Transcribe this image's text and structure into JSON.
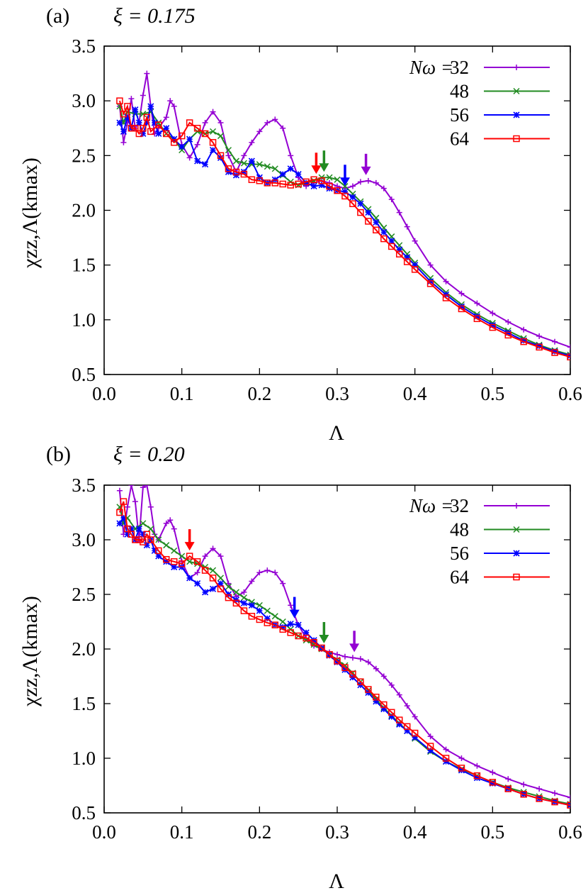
{
  "chart_data": [
    {
      "type": "line",
      "panel_label": "(a)",
      "param_label": "ξ = 0.175",
      "xlabel": "Λ",
      "ylabel": "χzz,Λ(kmax)",
      "xlim": [
        0.0,
        0.6
      ],
      "ylim": [
        0.5,
        3.5
      ],
      "xticks": [
        "0.0",
        "0.1",
        "0.2",
        "0.3",
        "0.4",
        "0.5",
        "0.6"
      ],
      "yticks": [
        "0.5",
        "1.0",
        "1.5",
        "2.0",
        "2.5",
        "3.0",
        "3.5"
      ],
      "legend_title": "Nω =",
      "legend_position": "top-right",
      "series": [
        {
          "name": "32",
          "color": "#9400d3",
          "marker": "plus",
          "x": [
            0.02,
            0.025,
            0.03,
            0.035,
            0.04,
            0.045,
            0.05,
            0.055,
            0.06,
            0.065,
            0.07,
            0.08,
            0.085,
            0.09,
            0.1,
            0.11,
            0.12,
            0.13,
            0.14,
            0.15,
            0.16,
            0.17,
            0.18,
            0.19,
            0.2,
            0.21,
            0.22,
            0.23,
            0.24,
            0.25,
            0.26,
            0.27,
            0.28,
            0.29,
            0.3,
            0.31,
            0.32,
            0.33,
            0.34,
            0.35,
            0.36,
            0.37,
            0.38,
            0.39,
            0.4,
            0.42,
            0.44,
            0.46,
            0.48,
            0.5,
            0.52,
            0.54,
            0.56,
            0.58,
            0.6
          ],
          "y": [
            2.95,
            2.62,
            2.8,
            3.02,
            2.75,
            2.8,
            3.05,
            3.25,
            2.95,
            2.7,
            2.75,
            2.85,
            3.0,
            2.95,
            2.6,
            2.48,
            2.6,
            2.8,
            2.9,
            2.8,
            2.5,
            2.35,
            2.5,
            2.62,
            2.72,
            2.8,
            2.83,
            2.75,
            2.5,
            2.3,
            2.22,
            2.25,
            2.27,
            2.25,
            2.22,
            2.2,
            2.22,
            2.26,
            2.27,
            2.25,
            2.2,
            2.1,
            1.98,
            1.85,
            1.72,
            1.5,
            1.35,
            1.24,
            1.15,
            1.06,
            0.98,
            0.91,
            0.85,
            0.8,
            0.75
          ]
        },
        {
          "name": "48",
          "color": "#228b22",
          "marker": "cross",
          "x": [
            0.02,
            0.025,
            0.03,
            0.04,
            0.05,
            0.06,
            0.07,
            0.08,
            0.09,
            0.1,
            0.11,
            0.12,
            0.13,
            0.14,
            0.15,
            0.16,
            0.17,
            0.18,
            0.19,
            0.2,
            0.21,
            0.22,
            0.23,
            0.24,
            0.25,
            0.26,
            0.27,
            0.28,
            0.29,
            0.3,
            0.31,
            0.32,
            0.33,
            0.34,
            0.35,
            0.36,
            0.37,
            0.38,
            0.39,
            0.4,
            0.42,
            0.44,
            0.46,
            0.48,
            0.5,
            0.52,
            0.54,
            0.56,
            0.58,
            0.6
          ],
          "y": [
            2.95,
            2.8,
            2.9,
            2.88,
            2.88,
            2.9,
            2.8,
            2.7,
            2.65,
            2.55,
            2.65,
            2.72,
            2.7,
            2.72,
            2.68,
            2.55,
            2.45,
            2.43,
            2.42,
            2.42,
            2.4,
            2.38,
            2.32,
            2.26,
            2.23,
            2.25,
            2.27,
            2.3,
            2.3,
            2.28,
            2.22,
            2.15,
            2.08,
            2.01,
            1.93,
            1.84,
            1.76,
            1.68,
            1.6,
            1.52,
            1.38,
            1.25,
            1.14,
            1.05,
            0.97,
            0.9,
            0.83,
            0.77,
            0.72,
            0.68
          ]
        },
        {
          "name": "56",
          "color": "#0000ff",
          "marker": "star",
          "x": [
            0.02,
            0.025,
            0.03,
            0.035,
            0.04,
            0.045,
            0.05,
            0.055,
            0.06,
            0.065,
            0.07,
            0.08,
            0.09,
            0.1,
            0.11,
            0.12,
            0.13,
            0.14,
            0.15,
            0.16,
            0.17,
            0.18,
            0.19,
            0.2,
            0.21,
            0.22,
            0.23,
            0.24,
            0.25,
            0.26,
            0.27,
            0.28,
            0.29,
            0.3,
            0.31,
            0.32,
            0.33,
            0.34,
            0.35,
            0.36,
            0.37,
            0.38,
            0.39,
            0.4,
            0.42,
            0.44,
            0.46,
            0.48,
            0.5,
            0.52,
            0.54,
            0.56,
            0.58,
            0.6
          ],
          "y": [
            2.8,
            2.72,
            2.85,
            2.75,
            2.92,
            2.8,
            2.7,
            2.8,
            2.95,
            2.8,
            2.7,
            2.75,
            2.65,
            2.58,
            2.65,
            2.45,
            2.42,
            2.55,
            2.48,
            2.35,
            2.32,
            2.35,
            2.45,
            2.3,
            2.25,
            2.28,
            2.33,
            2.38,
            2.33,
            2.25,
            2.22,
            2.23,
            2.2,
            2.18,
            2.17,
            2.12,
            2.06,
            1.98,
            1.89,
            1.8,
            1.72,
            1.64,
            1.57,
            1.5,
            1.35,
            1.23,
            1.12,
            1.03,
            0.95,
            0.88,
            0.81,
            0.76,
            0.71,
            0.67
          ]
        },
        {
          "name": "64",
          "color": "#ff0000",
          "marker": "square",
          "x": [
            0.02,
            0.025,
            0.03,
            0.035,
            0.04,
            0.045,
            0.05,
            0.055,
            0.06,
            0.07,
            0.08,
            0.09,
            0.1,
            0.11,
            0.12,
            0.13,
            0.14,
            0.15,
            0.16,
            0.17,
            0.18,
            0.19,
            0.2,
            0.21,
            0.22,
            0.23,
            0.24,
            0.25,
            0.26,
            0.27,
            0.28,
            0.29,
            0.3,
            0.31,
            0.32,
            0.33,
            0.34,
            0.35,
            0.36,
            0.37,
            0.38,
            0.39,
            0.4,
            0.42,
            0.44,
            0.46,
            0.48,
            0.5,
            0.52,
            0.54,
            0.56,
            0.58,
            0.6
          ],
          "y": [
            3.0,
            2.88,
            2.95,
            2.75,
            2.75,
            2.7,
            2.75,
            2.85,
            2.72,
            2.78,
            2.7,
            2.62,
            2.68,
            2.8,
            2.75,
            2.7,
            2.62,
            2.5,
            2.38,
            2.35,
            2.33,
            2.28,
            2.27,
            2.25,
            2.25,
            2.24,
            2.23,
            2.24,
            2.26,
            2.28,
            2.27,
            2.22,
            2.18,
            2.13,
            2.06,
            1.98,
            1.9,
            1.82,
            1.74,
            1.67,
            1.6,
            1.53,
            1.46,
            1.33,
            1.2,
            1.1,
            1.01,
            0.93,
            0.86,
            0.8,
            0.75,
            0.7,
            0.66
          ]
        }
      ],
      "arrows": [
        {
          "x": 0.273,
          "color": "#ff0000"
        },
        {
          "x": 0.283,
          "color": "#228b22"
        },
        {
          "x": 0.31,
          "color": "#0000ff"
        },
        {
          "x": 0.337,
          "color": "#9400d3"
        }
      ]
    },
    {
      "type": "line",
      "panel_label": "(b)",
      "param_label": "ξ = 0.20",
      "xlabel": "Λ",
      "ylabel": "χzz,Λ(kmax)",
      "xlim": [
        0.0,
        0.6
      ],
      "ylim": [
        0.5,
        3.5
      ],
      "xticks": [
        "0.0",
        "0.1",
        "0.2",
        "0.3",
        "0.4",
        "0.5",
        "0.6"
      ],
      "yticks": [
        "0.5",
        "1.0",
        "1.5",
        "2.0",
        "2.5",
        "3.0",
        "3.5"
      ],
      "legend_title": "Nω =",
      "legend_position": "top-right",
      "series": [
        {
          "name": "32",
          "color": "#9400d3",
          "marker": "plus",
          "x": [
            0.02,
            0.025,
            0.03,
            0.035,
            0.04,
            0.045,
            0.05,
            0.055,
            0.06,
            0.065,
            0.07,
            0.08,
            0.085,
            0.09,
            0.1,
            0.11,
            0.12,
            0.13,
            0.14,
            0.15,
            0.16,
            0.17,
            0.18,
            0.19,
            0.2,
            0.21,
            0.22,
            0.23,
            0.24,
            0.25,
            0.26,
            0.27,
            0.28,
            0.29,
            0.3,
            0.31,
            0.32,
            0.33,
            0.34,
            0.35,
            0.36,
            0.37,
            0.38,
            0.39,
            0.4,
            0.42,
            0.44,
            0.46,
            0.48,
            0.5,
            0.52,
            0.54,
            0.56,
            0.58,
            0.6
          ],
          "y": [
            3.45,
            3.05,
            3.3,
            3.5,
            3.35,
            3.0,
            3.48,
            3.5,
            3.3,
            3.05,
            3.0,
            3.15,
            3.18,
            3.1,
            2.8,
            2.65,
            2.7,
            2.85,
            2.92,
            2.85,
            2.6,
            2.48,
            2.52,
            2.62,
            2.7,
            2.72,
            2.7,
            2.6,
            2.4,
            2.22,
            2.1,
            2.03,
            2.0,
            1.97,
            1.95,
            1.93,
            1.92,
            1.91,
            1.88,
            1.82,
            1.75,
            1.67,
            1.58,
            1.48,
            1.38,
            1.2,
            1.08,
            1.0,
            0.93,
            0.87,
            0.81,
            0.76,
            0.72,
            0.68,
            0.64
          ]
        },
        {
          "name": "48",
          "color": "#228b22",
          "marker": "cross",
          "x": [
            0.02,
            0.025,
            0.03,
            0.04,
            0.05,
            0.06,
            0.07,
            0.08,
            0.09,
            0.1,
            0.11,
            0.12,
            0.13,
            0.14,
            0.15,
            0.16,
            0.17,
            0.18,
            0.19,
            0.2,
            0.21,
            0.22,
            0.23,
            0.24,
            0.25,
            0.26,
            0.27,
            0.28,
            0.29,
            0.3,
            0.31,
            0.32,
            0.33,
            0.34,
            0.35,
            0.36,
            0.37,
            0.38,
            0.39,
            0.4,
            0.42,
            0.44,
            0.46,
            0.48,
            0.5,
            0.52,
            0.54,
            0.56,
            0.58,
            0.6
          ],
          "y": [
            3.3,
            3.15,
            3.2,
            3.1,
            3.15,
            3.1,
            3.0,
            2.95,
            2.9,
            2.85,
            2.8,
            2.78,
            2.75,
            2.72,
            2.65,
            2.57,
            2.52,
            2.47,
            2.43,
            2.4,
            2.35,
            2.3,
            2.25,
            2.18,
            2.12,
            2.08,
            2.04,
            2.0,
            1.95,
            1.9,
            1.85,
            1.78,
            1.7,
            1.62,
            1.54,
            1.46,
            1.39,
            1.32,
            1.25,
            1.18,
            1.06,
            0.97,
            0.9,
            0.84,
            0.78,
            0.73,
            0.69,
            0.65,
            0.61,
            0.58
          ]
        },
        {
          "name": "56",
          "color": "#0000ff",
          "marker": "star",
          "x": [
            0.02,
            0.025,
            0.03,
            0.035,
            0.04,
            0.045,
            0.05,
            0.055,
            0.06,
            0.065,
            0.07,
            0.08,
            0.09,
            0.1,
            0.11,
            0.12,
            0.13,
            0.14,
            0.15,
            0.16,
            0.17,
            0.18,
            0.19,
            0.2,
            0.21,
            0.22,
            0.23,
            0.24,
            0.25,
            0.26,
            0.27,
            0.28,
            0.29,
            0.3,
            0.31,
            0.32,
            0.33,
            0.34,
            0.35,
            0.36,
            0.37,
            0.38,
            0.39,
            0.4,
            0.42,
            0.44,
            0.46,
            0.48,
            0.5,
            0.52,
            0.54,
            0.56,
            0.58,
            0.6
          ],
          "y": [
            3.15,
            3.2,
            3.05,
            3.1,
            3.0,
            3.1,
            3.05,
            2.95,
            3.0,
            2.9,
            2.85,
            2.8,
            2.75,
            2.75,
            2.65,
            2.6,
            2.52,
            2.55,
            2.6,
            2.5,
            2.45,
            2.42,
            2.4,
            2.35,
            2.28,
            2.22,
            2.2,
            2.23,
            2.22,
            2.15,
            2.08,
            2.01,
            1.94,
            1.88,
            1.81,
            1.74,
            1.67,
            1.6,
            1.52,
            1.45,
            1.38,
            1.31,
            1.25,
            1.19,
            1.07,
            0.97,
            0.89,
            0.82,
            0.77,
            0.72,
            0.67,
            0.63,
            0.6,
            0.57
          ]
        },
        {
          "name": "64",
          "color": "#ff0000",
          "marker": "square",
          "x": [
            0.02,
            0.025,
            0.03,
            0.035,
            0.04,
            0.045,
            0.05,
            0.055,
            0.06,
            0.07,
            0.08,
            0.09,
            0.1,
            0.11,
            0.12,
            0.13,
            0.14,
            0.15,
            0.16,
            0.17,
            0.18,
            0.19,
            0.2,
            0.21,
            0.22,
            0.23,
            0.24,
            0.25,
            0.26,
            0.27,
            0.28,
            0.29,
            0.3,
            0.31,
            0.32,
            0.33,
            0.34,
            0.35,
            0.36,
            0.37,
            0.38,
            0.39,
            0.4,
            0.42,
            0.44,
            0.46,
            0.48,
            0.5,
            0.52,
            0.54,
            0.56,
            0.58,
            0.6
          ],
          "y": [
            3.25,
            3.35,
            3.1,
            3.05,
            3.0,
            3.0,
            2.98,
            3.05,
            3.0,
            2.9,
            2.82,
            2.8,
            2.78,
            2.85,
            2.8,
            2.72,
            2.65,
            2.55,
            2.47,
            2.42,
            2.35,
            2.3,
            2.27,
            2.24,
            2.22,
            2.18,
            2.15,
            2.12,
            2.1,
            2.06,
            2.01,
            1.95,
            1.89,
            1.83,
            1.77,
            1.7,
            1.63,
            1.56,
            1.49,
            1.42,
            1.35,
            1.29,
            1.23,
            1.11,
            1.0,
            0.91,
            0.84,
            0.78,
            0.72,
            0.67,
            0.63,
            0.6,
            0.57
          ]
        }
      ],
      "arrows": [
        {
          "x": 0.11,
          "color": "#ff0000"
        },
        {
          "x": 0.245,
          "color": "#0000ff"
        },
        {
          "x": 0.283,
          "color": "#228b22"
        },
        {
          "x": 0.322,
          "color": "#9400d3"
        }
      ]
    }
  ]
}
